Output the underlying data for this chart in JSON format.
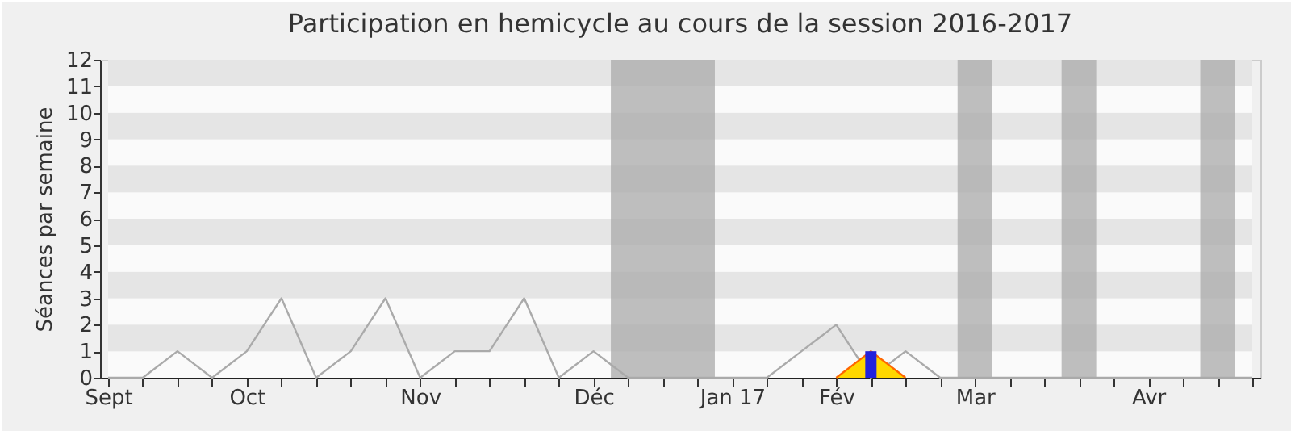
{
  "chart_data": {
    "type": "line",
    "title": "Participation en hemicycle au cours de la session 2016-2017",
    "ylabel": "Séances par semaine",
    "categories": [
      "Sept",
      null,
      null,
      null,
      "Oct",
      null,
      null,
      null,
      null,
      "Nov",
      null,
      null,
      null,
      null,
      "Déc",
      null,
      null,
      null,
      "Jan 17",
      null,
      null,
      "Fév",
      null,
      null,
      null,
      "Mar",
      null,
      null,
      null,
      null,
      "Avr",
      null,
      null,
      null
    ],
    "ylim": [
      0,
      12
    ],
    "yticks": [
      0,
      1,
      2,
      3,
      4,
      5,
      6,
      7,
      8,
      9,
      10,
      11,
      12
    ],
    "series": [
      {
        "color": "#aaaaaa",
        "values": [
          0,
          0,
          1,
          0,
          1,
          3,
          0,
          1,
          3,
          0,
          1,
          1,
          3,
          0,
          1,
          0,
          0,
          0,
          0,
          0,
          1,
          2,
          0,
          1,
          0,
          0,
          0,
          0,
          0,
          0,
          0,
          0,
          0,
          0
        ]
      },
      {
        "type": "area",
        "color": "#ffd700",
        "values": [
          null,
          null,
          null,
          null,
          null,
          null,
          null,
          null,
          null,
          null,
          null,
          null,
          null,
          null,
          null,
          null,
          null,
          null,
          null,
          null,
          null,
          0,
          1,
          0,
          null,
          null,
          null,
          null,
          null,
          null,
          null,
          null,
          null,
          null
        ]
      },
      {
        "type": "bar",
        "color": "#2222dd",
        "values": [
          null,
          null,
          null,
          null,
          null,
          null,
          null,
          null,
          null,
          null,
          null,
          null,
          null,
          null,
          null,
          null,
          null,
          null,
          null,
          null,
          null,
          null,
          1,
          null,
          null,
          null,
          null,
          null,
          null,
          null,
          null,
          null,
          null,
          null
        ]
      }
    ]
  }
}
